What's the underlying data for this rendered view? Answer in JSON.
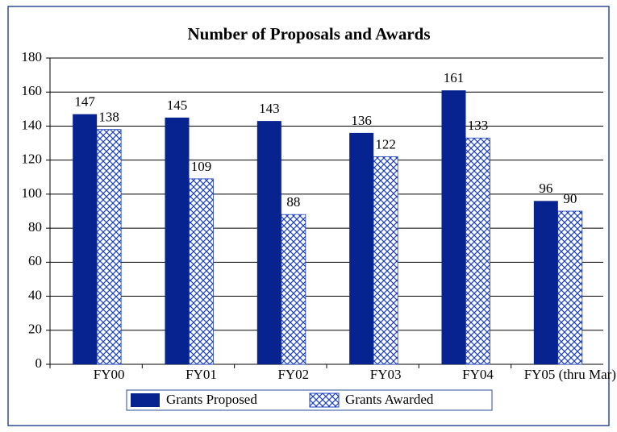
{
  "chart_data": {
    "type": "bar",
    "title": "Number of Proposals and Awards",
    "categories": [
      "FY00",
      "FY01",
      "FY02",
      "FY03",
      "FY04",
      "FY05 (thru Mar)"
    ],
    "series": [
      {
        "name": "Grants Proposed",
        "color": "#06238f",
        "hatch": false,
        "values": [
          147,
          145,
          143,
          136,
          161,
          96
        ]
      },
      {
        "name": "Grants Awarded",
        "color": "#1a3fbf",
        "hatch": true,
        "values": [
          138,
          109,
          88,
          122,
          133,
          90
        ]
      }
    ],
    "ylim": [
      0,
      180
    ],
    "yticks": [
      0,
      20,
      40,
      60,
      80,
      100,
      120,
      140,
      160,
      180
    ],
    "grid": true,
    "data_labels": true,
    "legend": "bottom"
  }
}
